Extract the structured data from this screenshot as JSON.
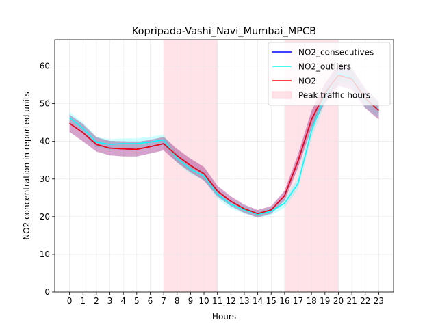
{
  "chart_data": {
    "type": "line",
    "title": "Kopripada-Vashi_Navi_Mumbai_MPCB",
    "xlabel": "Hours",
    "ylabel": "NO2 concentration in reported units",
    "x": [
      0,
      1,
      2,
      3,
      4,
      5,
      6,
      7,
      8,
      9,
      10,
      11,
      12,
      13,
      14,
      15,
      16,
      17,
      18,
      19,
      20,
      21,
      22,
      23
    ],
    "xlim": [
      -1.1,
      24.1
    ],
    "ylim": [
      0,
      67
    ],
    "yticks": [
      0,
      10,
      20,
      30,
      40,
      50,
      60
    ],
    "grid": true,
    "legend_position": "top-right",
    "shaded_regions": [
      {
        "name": "Peak traffic hours",
        "x_start": 7,
        "x_end": 11,
        "color": "#ffc0cb"
      },
      {
        "name": "Peak traffic hours",
        "x_start": 16,
        "x_end": 20,
        "color": "#ffc0cb"
      }
    ],
    "series": [
      {
        "name": "NO2_consecutives",
        "color": "#0000ff",
        "values": [
          44.8,
          42.3,
          39.2,
          38.2,
          38.0,
          37.9,
          38.6,
          39.4,
          36.2,
          33.6,
          31.4,
          26.8,
          24.1,
          22.1,
          20.8,
          21.8,
          25.6,
          34.8,
          45.8,
          52.8,
          57.6,
          56.6,
          51.4,
          48.2
        ],
        "lower": [
          42.5,
          40.0,
          37.3,
          36.3,
          36.0,
          36.0,
          36.8,
          37.6,
          34.4,
          31.8,
          29.6,
          25.4,
          22.8,
          21.0,
          19.8,
          20.8,
          24.3,
          33.0,
          43.5,
          50.2,
          54.8,
          53.8,
          48.8,
          45.8
        ],
        "upper": [
          47.1,
          44.6,
          41.1,
          40.1,
          40.0,
          39.8,
          40.4,
          41.2,
          38.0,
          35.4,
          33.2,
          28.2,
          25.4,
          23.2,
          21.8,
          22.8,
          26.9,
          36.6,
          48.1,
          55.4,
          60.4,
          59.4,
          54.0,
          50.6
        ]
      },
      {
        "name": "NO2_outliers",
        "color": "#00ffff",
        "values": [
          46.3,
          43.5,
          39.8,
          39.2,
          39.4,
          39.4,
          39.8,
          40.4,
          35.5,
          32.6,
          30.8,
          26.0,
          23.3,
          21.8,
          20.6,
          21.4,
          23.6,
          28.8,
          42.8,
          52.0,
          58.0,
          57.0,
          51.0,
          48.4
        ],
        "lower": [
          44.8,
          42.0,
          38.4,
          37.8,
          38.0,
          38.0,
          38.4,
          39.0,
          34.2,
          31.3,
          29.6,
          24.8,
          22.2,
          20.8,
          19.7,
          20.4,
          22.4,
          27.4,
          40.8,
          50.0,
          56.0,
          55.0,
          49.0,
          46.4
        ],
        "upper": [
          47.8,
          45.0,
          41.2,
          40.6,
          40.8,
          40.8,
          41.2,
          41.8,
          36.8,
          33.9,
          32.0,
          27.2,
          24.4,
          22.8,
          21.5,
          22.4,
          24.8,
          30.2,
          44.8,
          54.0,
          60.0,
          59.0,
          53.0,
          50.4
        ]
      },
      {
        "name": "NO2",
        "color": "#ff0000",
        "values": [
          44.8,
          42.3,
          39.2,
          38.2,
          38.0,
          37.9,
          38.6,
          39.4,
          36.2,
          33.6,
          31.4,
          26.8,
          24.1,
          22.1,
          20.8,
          21.8,
          25.6,
          34.8,
          45.8,
          52.8,
          57.6,
          56.6,
          51.4,
          48.2
        ],
        "lower": [
          42.5,
          40.0,
          37.3,
          36.3,
          36.0,
          36.0,
          36.8,
          37.6,
          34.4,
          31.8,
          29.6,
          25.4,
          22.8,
          21.0,
          19.8,
          20.8,
          24.3,
          33.0,
          43.5,
          50.2,
          54.8,
          53.8,
          48.8,
          45.8
        ],
        "upper": [
          47.1,
          44.6,
          41.1,
          40.1,
          40.0,
          39.8,
          40.4,
          41.2,
          38.0,
          35.4,
          33.2,
          28.2,
          25.4,
          23.2,
          21.8,
          22.8,
          26.9,
          36.6,
          48.1,
          55.4,
          60.4,
          59.4,
          54.0,
          50.6
        ]
      }
    ],
    "legend": [
      "NO2_consecutives",
      "NO2_outliers",
      "NO2",
      "Peak traffic hours"
    ]
  }
}
